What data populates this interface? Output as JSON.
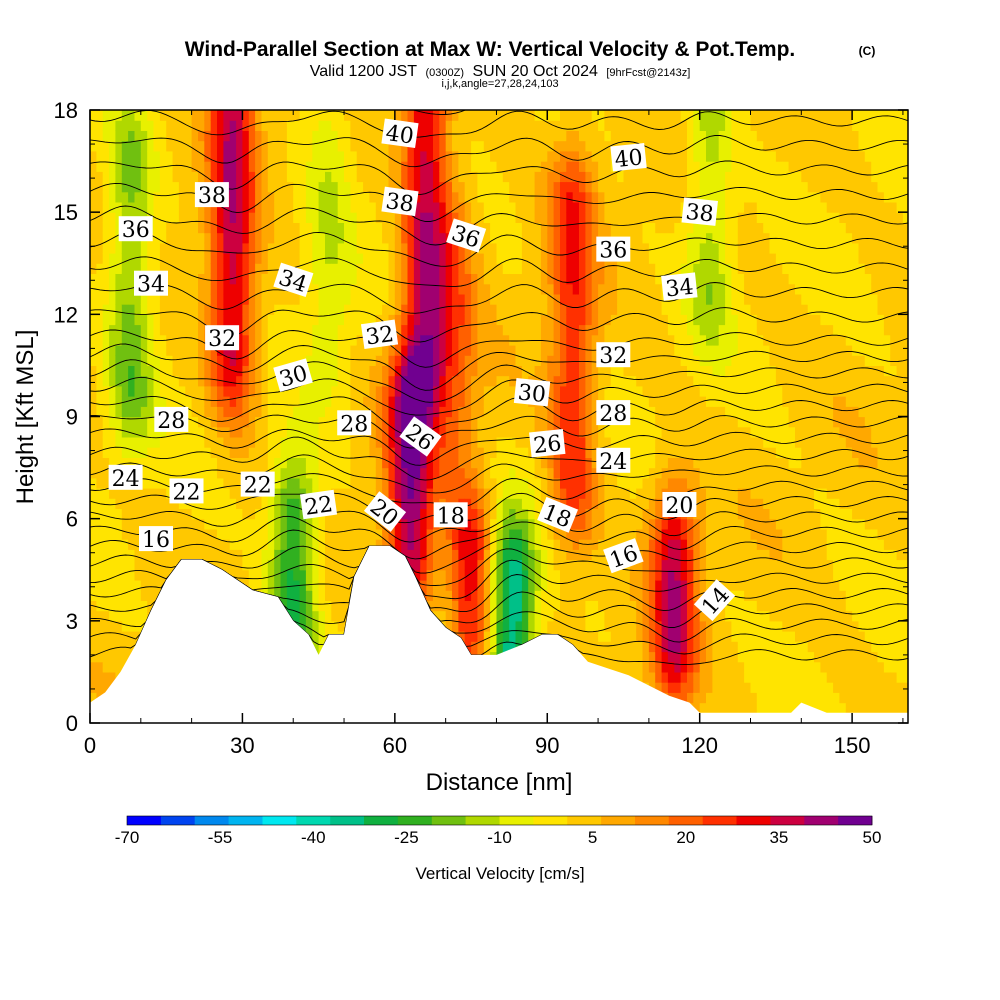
{
  "title": {
    "main": "Wind-Parallel Section at Max W: Vertical Velocity & Pot.Temp.",
    "copyright": "(C)",
    "valid_prefix": "Valid 1200 JST",
    "valid_zulu": "(0300Z)",
    "valid_date": "SUN 20 Oct 2024",
    "forecast": "[9hrFcst@2143z]",
    "params": "i,j,k,angle=27,28,24,103"
  },
  "colors": {
    "bands": [
      "#0000ff",
      "#0044f0",
      "#0088ee",
      "#00b4f0",
      "#00e8f0",
      "#00d8b0",
      "#00c088",
      "#10b040",
      "#30b020",
      "#70c010",
      "#b0d800",
      "#e8f000",
      "#ffe400",
      "#ffc800",
      "#ffa800",
      "#ff8800",
      "#ff6000",
      "#ff3000",
      "#ee0000",
      "#cc0040",
      "#a00070",
      "#700090"
    ],
    "terrain": "#ffffff",
    "contour": "#000000"
  },
  "chart_data": {
    "type": "heatmap",
    "xlabel": "Distance [nm]",
    "ylabel": "Height [Kft MSL]",
    "xlim": [
      0,
      161
    ],
    "ylim": [
      0,
      18
    ],
    "x_ticks": [
      "0",
      "30",
      "60",
      "90",
      "120",
      "150"
    ],
    "y_ticks": [
      "0",
      "3",
      "6",
      "9",
      "12",
      "15",
      "18"
    ],
    "colorbar": {
      "label": "Vertical Velocity [cm/s]",
      "tick_labels": [
        "-70",
        "-55",
        "-40",
        "-25",
        "-10",
        "5",
        "20",
        "35",
        "50"
      ],
      "range": [
        -70,
        50
      ]
    },
    "velocity_features": [
      {
        "x": 28,
        "y0": 11,
        "y1": 18,
        "w": 35
      },
      {
        "x": 40,
        "y0": 3,
        "y1": 6,
        "w": -30
      },
      {
        "x": 47,
        "y0": 11,
        "y1": 18,
        "w": -10
      },
      {
        "x": 63,
        "y0": 5,
        "y1": 9,
        "w": 40
      },
      {
        "x": 66,
        "y0": 11,
        "y1": 18,
        "w": 35
      },
      {
        "x": 75,
        "y0": 3,
        "y1": 5,
        "w": 30
      },
      {
        "x": 72,
        "y0": 9,
        "y1": 14,
        "w": 15
      },
      {
        "x": 83,
        "y0": 2,
        "y1": 4,
        "w": -40
      },
      {
        "x": 95,
        "y0": 7,
        "y1": 15,
        "w": 25
      },
      {
        "x": 115,
        "y0": 2.5,
        "y1": 5,
        "w": 35
      },
      {
        "x": 8,
        "y0": 10,
        "y1": 16,
        "w": -20
      },
      {
        "x": 122,
        "y0": 13,
        "y1": 18,
        "w": -15
      }
    ],
    "terrain_profile": [
      [
        0,
        0.6
      ],
      [
        3,
        0.9
      ],
      [
        6,
        1.5
      ],
      [
        9,
        2.3
      ],
      [
        12,
        3.3
      ],
      [
        15,
        4.2
      ],
      [
        18,
        4.8
      ],
      [
        22,
        4.8
      ],
      [
        26,
        4.5
      ],
      [
        29,
        4.2
      ],
      [
        32,
        3.9
      ],
      [
        37,
        3.7
      ],
      [
        40,
        3.0
      ],
      [
        43,
        2.6
      ],
      [
        45,
        2.0
      ],
      [
        47,
        2.6
      ],
      [
        50,
        2.6
      ],
      [
        52,
        4.3
      ],
      [
        55,
        5.2
      ],
      [
        59,
        5.2
      ],
      [
        62,
        4.9
      ],
      [
        64,
        4.3
      ],
      [
        67,
        3.3
      ],
      [
        70,
        2.8
      ],
      [
        73,
        2.5
      ],
      [
        75,
        2.0
      ],
      [
        80,
        2.0
      ],
      [
        85,
        2.3
      ],
      [
        89,
        2.6
      ],
      [
        92,
        2.6
      ],
      [
        95,
        2.3
      ],
      [
        98,
        1.8
      ],
      [
        102,
        1.6
      ],
      [
        106,
        1.4
      ],
      [
        110,
        1.1
      ],
      [
        114,
        0.8
      ],
      [
        118,
        0.6
      ],
      [
        120,
        0.3
      ],
      [
        138,
        0.3
      ],
      [
        140,
        0.6
      ],
      [
        145,
        0.3
      ],
      [
        161,
        0.3
      ]
    ],
    "isentrope_labels": [
      {
        "text": "40",
        "x": 61,
        "y": 17.3,
        "rot": 8
      },
      {
        "text": "40",
        "x": 106,
        "y": 16.6,
        "rot": -6
      },
      {
        "text": "38",
        "x": 24,
        "y": 15.5,
        "rot": 0
      },
      {
        "text": "38",
        "x": 61,
        "y": 15.3,
        "rot": 8
      },
      {
        "text": "38",
        "x": 120,
        "y": 15.0,
        "rot": 6
      },
      {
        "text": "36",
        "x": 9,
        "y": 14.5,
        "rot": 0
      },
      {
        "text": "36",
        "x": 74,
        "y": 14.3,
        "rot": 18
      },
      {
        "text": "36",
        "x": 103,
        "y": 13.9,
        "rot": 0
      },
      {
        "text": "34",
        "x": 12,
        "y": 12.9,
        "rot": 0
      },
      {
        "text": "34",
        "x": 40,
        "y": 13.0,
        "rot": 18
      },
      {
        "text": "34",
        "x": 116,
        "y": 12.8,
        "rot": -6
      },
      {
        "text": "32",
        "x": 26,
        "y": 11.3,
        "rot": 0
      },
      {
        "text": "32",
        "x": 57,
        "y": 11.4,
        "rot": -8
      },
      {
        "text": "32",
        "x": 103,
        "y": 10.8,
        "rot": 0
      },
      {
        "text": "30",
        "x": 40,
        "y": 10.2,
        "rot": -16
      },
      {
        "text": "30",
        "x": 87,
        "y": 9.7,
        "rot": 6
      },
      {
        "text": "28",
        "x": 16,
        "y": 8.9,
        "rot": 0
      },
      {
        "text": "28",
        "x": 52,
        "y": 8.8,
        "rot": 0
      },
      {
        "text": "28",
        "x": 103,
        "y": 9.1,
        "rot": 0
      },
      {
        "text": "26",
        "x": 65,
        "y": 8.4,
        "rot": 36
      },
      {
        "text": "26",
        "x": 90,
        "y": 8.2,
        "rot": -6
      },
      {
        "text": "24",
        "x": 7,
        "y": 7.2,
        "rot": 0
      },
      {
        "text": "24",
        "x": 103,
        "y": 7.7,
        "rot": 0
      },
      {
        "text": "22",
        "x": 19,
        "y": 6.8,
        "rot": 0
      },
      {
        "text": "22",
        "x": 33,
        "y": 7.0,
        "rot": 0
      },
      {
        "text": "22",
        "x": 45,
        "y": 6.4,
        "rot": -8
      },
      {
        "text": "20",
        "x": 58,
        "y": 6.2,
        "rot": 38
      },
      {
        "text": "20",
        "x": 116,
        "y": 6.4,
        "rot": 0
      },
      {
        "text": "18",
        "x": 71,
        "y": 6.1,
        "rot": 0
      },
      {
        "text": "18",
        "x": 92,
        "y": 6.1,
        "rot": 22
      },
      {
        "text": "16",
        "x": 13,
        "y": 5.4,
        "rot": 0
      },
      {
        "text": "16",
        "x": 105,
        "y": 4.9,
        "rot": -20
      },
      {
        "text": "14",
        "x": 123,
        "y": 3.6,
        "rot": -48
      }
    ]
  }
}
